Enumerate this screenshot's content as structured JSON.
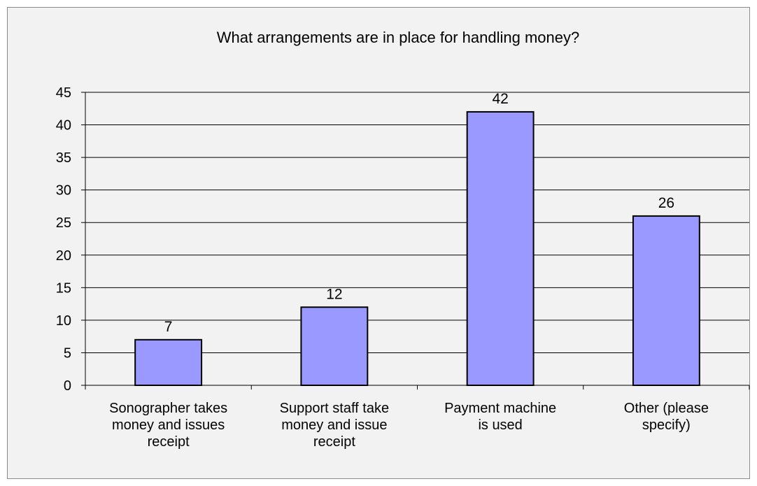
{
  "chart_data": {
    "type": "bar",
    "title": "What arrangements are in place for handling money?",
    "categories": [
      [
        "Sonographer takes",
        "money and issues",
        "receipt"
      ],
      [
        "Support staff take",
        "money and issue",
        "receipt"
      ],
      [
        "Payment machine",
        "is used"
      ],
      [
        "Other (please",
        "specify)"
      ]
    ],
    "values": [
      7,
      12,
      42,
      26
    ],
    "data_labels": [
      "7",
      "12",
      "42",
      "26"
    ],
    "ylim": [
      0,
      45
    ],
    "yticks": [
      "0",
      "5",
      "10",
      "15",
      "20",
      "25",
      "30",
      "35",
      "40",
      "45"
    ],
    "grid": true,
    "legend": "none",
    "xlabel": "",
    "ylabel": "",
    "colors": {
      "bar_fill": "#9999ff",
      "bar_stroke": "#000000",
      "background": "#f2f2f2",
      "gridline": "#000000"
    }
  }
}
